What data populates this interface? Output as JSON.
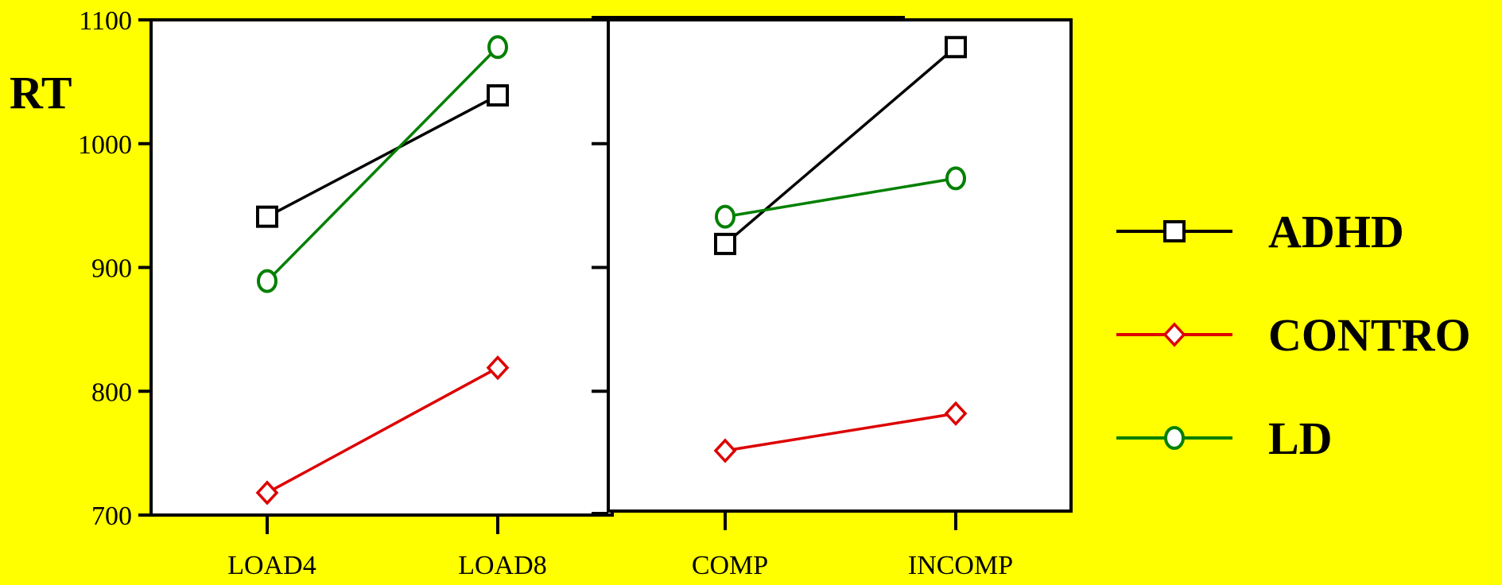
{
  "colors": {
    "background": "#FFFF00",
    "plot_bg": "#FFFFFF",
    "axis": "#000000"
  },
  "chart_data": [
    {
      "type": "line",
      "ylabel": "RT",
      "ylim": [
        700,
        1100
      ],
      "yticks": [
        "700",
        "800",
        "900",
        "1000",
        "1100"
      ],
      "categories": [
        "LOAD4",
        "LOAD8"
      ],
      "series": [
        {
          "name": "ADHD",
          "values": [
            941,
            1039
          ],
          "color": "#000000",
          "marker": "square"
        },
        {
          "name": "CONTRO",
          "values": [
            718,
            819
          ],
          "color": "#DD0000",
          "marker": "diamond"
        },
        {
          "name": "LD",
          "values": [
            889,
            1078
          ],
          "color": "#008000",
          "marker": "circle"
        }
      ]
    },
    {
      "type": "line",
      "ylim": [
        700,
        1100
      ],
      "categories": [
        "COMP",
        "INCOMP"
      ],
      "series": [
        {
          "name": "ADHD",
          "values": [
            919,
            1078
          ],
          "color": "#000000",
          "marker": "square"
        },
        {
          "name": "CONTRO",
          "values": [
            752,
            782
          ],
          "color": "#DD0000",
          "marker": "diamond"
        },
        {
          "name": "LD",
          "values": [
            941,
            972
          ],
          "color": "#008000",
          "marker": "circle"
        }
      ]
    }
  ],
  "legend": {
    "position": "right",
    "items": [
      {
        "label": "ADHD",
        "color": "#000000",
        "marker": "square"
      },
      {
        "label": "CONTRO",
        "color": "#DD0000",
        "marker": "diamond"
      },
      {
        "label": "LD",
        "color": "#008000",
        "marker": "circle"
      }
    ]
  }
}
